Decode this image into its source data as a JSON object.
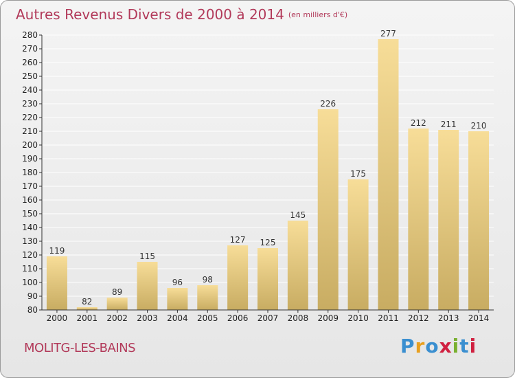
{
  "title": "Autres Revenus Divers de 2000 à 2014",
  "subtitle": "(en milliers d'€)",
  "footer_city": "MOLITG-LES-BAINS",
  "logo_text": "Proxiti",
  "logo_colors": [
    "#3a8fd0",
    "#e8a020",
    "#3a8fd0",
    "#d02040",
    "#7ab030",
    "#3a8fd0",
    "#d02040"
  ],
  "colors": {
    "title": "#b23a5a",
    "bar_light": "#f7dd98",
    "bar_dark": "#c8ac62",
    "grid": "#ffffff",
    "axis": "#333333"
  },
  "chart_data": {
    "type": "bar",
    "categories": [
      "2000",
      "2001",
      "2002",
      "2003",
      "2004",
      "2005",
      "2006",
      "2007",
      "2008",
      "2009",
      "2010",
      "2011",
      "2012",
      "2013",
      "2014"
    ],
    "values": [
      119,
      82,
      89,
      115,
      96,
      98,
      127,
      125,
      145,
      226,
      175,
      277,
      212,
      211,
      210
    ],
    "ylim": [
      80,
      280
    ],
    "yticks": [
      80,
      90,
      100,
      110,
      120,
      130,
      140,
      150,
      160,
      170,
      180,
      190,
      200,
      210,
      220,
      230,
      240,
      250,
      260,
      270,
      280
    ],
    "grid": true,
    "data_labels": true
  }
}
